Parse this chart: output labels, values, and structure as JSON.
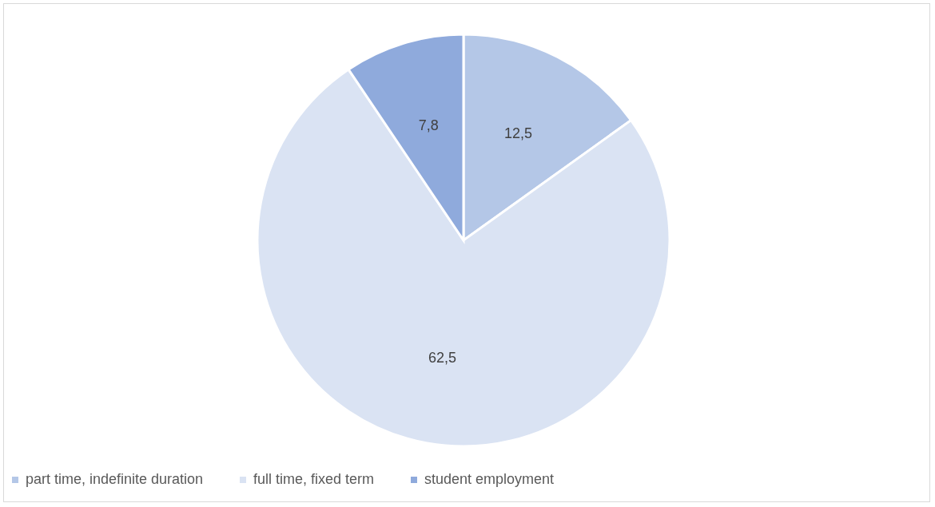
{
  "chart_data": {
    "type": "pie",
    "categories": [
      "part time, indefinite duration",
      "full time, fixed term",
      "student employment"
    ],
    "values": [
      12.5,
      62.5,
      7.8
    ],
    "value_labels": [
      "12,5",
      "62,5",
      "7,8"
    ],
    "colors": [
      "#b4c7e7",
      "#dae3f3",
      "#8faadc"
    ],
    "legend": "bottom"
  }
}
